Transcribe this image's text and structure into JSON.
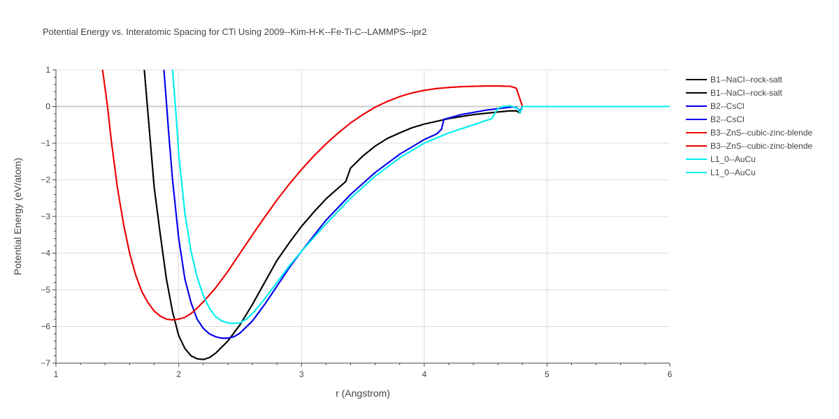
{
  "chart_data": {
    "type": "line",
    "title": "Potential Energy vs. Interatomic Spacing for CTi Using 2009--Kim-H-K--Fe-Ti-C--LAMMPS--ipr2",
    "xlabel": "r (Angstrom)",
    "ylabel": "Potential Energy (eV/atom)",
    "xlim": [
      1,
      6
    ],
    "ylim": [
      -7,
      1
    ],
    "xticks": [
      1,
      2,
      3,
      4,
      5,
      6
    ],
    "yticks": [
      1,
      0,
      -1,
      -2,
      -3,
      -4,
      -5,
      -6,
      -7
    ],
    "xtick_labels": [
      "1",
      "2",
      "3",
      "4",
      "5",
      "6"
    ],
    "ytick_labels": [
      "1",
      "0",
      "−1",
      "−2",
      "−3",
      "−4",
      "−5",
      "−6",
      "−7"
    ],
    "grid": true,
    "legend_position": "top-right",
    "series": [
      {
        "name": "B1--NaCl--rock-salt",
        "color": "#000000",
        "x": [
          1.72,
          1.75,
          1.8,
          1.85,
          1.9,
          1.95,
          2.0,
          2.05,
          2.1,
          2.15,
          2.2,
          2.25,
          2.3,
          2.4,
          2.5,
          2.6,
          2.7,
          2.8,
          2.9,
          3.0,
          3.1,
          3.2,
          3.3,
          3.36,
          3.4,
          3.5,
          3.6,
          3.7,
          3.8,
          3.9,
          4.0,
          4.2,
          4.4,
          4.6,
          4.7,
          4.75,
          4.78,
          4.8,
          5.0,
          6.0
        ],
        "y": [
          1.0,
          -0.2,
          -2.2,
          -3.5,
          -4.7,
          -5.6,
          -6.25,
          -6.6,
          -6.8,
          -6.88,
          -6.9,
          -6.85,
          -6.73,
          -6.4,
          -5.95,
          -5.4,
          -4.8,
          -4.2,
          -3.72,
          -3.27,
          -2.88,
          -2.52,
          -2.22,
          -2.05,
          -1.68,
          -1.35,
          -1.08,
          -0.87,
          -0.72,
          -0.58,
          -0.48,
          -0.33,
          -0.22,
          -0.15,
          -0.12,
          -0.12,
          -0.18,
          0.0,
          0.0,
          0.0
        ]
      },
      {
        "name": "B1--NaCl--rock-salt",
        "color": "#000000",
        "x": [
          1.72,
          1.75,
          1.8,
          1.85,
          1.9,
          1.95,
          2.0,
          2.05,
          2.1,
          2.15,
          2.2,
          2.25,
          2.3,
          2.4,
          2.5,
          2.6,
          2.7,
          2.8,
          2.9,
          3.0,
          3.1,
          3.2,
          3.3,
          3.36,
          3.4,
          3.5,
          3.6,
          3.7,
          3.8,
          3.9,
          4.0,
          4.2,
          4.4,
          4.6,
          4.7,
          4.75,
          4.78,
          4.8,
          5.0,
          6.0
        ],
        "y": [
          1.0,
          -0.2,
          -2.2,
          -3.5,
          -4.7,
          -5.6,
          -6.25,
          -6.6,
          -6.8,
          -6.88,
          -6.9,
          -6.85,
          -6.73,
          -6.4,
          -5.95,
          -5.4,
          -4.8,
          -4.2,
          -3.72,
          -3.27,
          -2.88,
          -2.52,
          -2.22,
          -2.05,
          -1.68,
          -1.35,
          -1.08,
          -0.87,
          -0.72,
          -0.58,
          -0.48,
          -0.33,
          -0.22,
          -0.15,
          -0.12,
          -0.12,
          -0.18,
          0.0,
          0.0,
          0.0
        ]
      },
      {
        "name": "B2--CsCl",
        "color": "#0000ee",
        "x": [
          1.88,
          1.92,
          1.95,
          2.0,
          2.05,
          2.1,
          2.15,
          2.2,
          2.25,
          2.3,
          2.35,
          2.4,
          2.45,
          2.5,
          2.6,
          2.7,
          2.8,
          2.9,
          3.0,
          3.2,
          3.4,
          3.6,
          3.8,
          4.0,
          4.1,
          4.14,
          4.16,
          4.3,
          4.5,
          4.7,
          4.75,
          4.78,
          4.8,
          5.0,
          6.0
        ],
        "y": [
          1.0,
          -0.8,
          -2.0,
          -3.6,
          -4.7,
          -5.35,
          -5.8,
          -6.05,
          -6.2,
          -6.28,
          -6.32,
          -6.32,
          -6.28,
          -6.18,
          -5.85,
          -5.4,
          -4.9,
          -4.4,
          -3.95,
          -3.1,
          -2.4,
          -1.8,
          -1.3,
          -0.9,
          -0.75,
          -0.62,
          -0.35,
          -0.22,
          -0.1,
          -0.02,
          -0.02,
          -0.12,
          0.0,
          0.0,
          0.0
        ]
      },
      {
        "name": "B2--CsCl",
        "color": "#0000ee",
        "x": [
          1.88,
          1.92,
          1.95,
          2.0,
          2.05,
          2.1,
          2.15,
          2.2,
          2.25,
          2.3,
          2.35,
          2.4,
          2.45,
          2.5,
          2.6,
          2.7,
          2.8,
          2.9,
          3.0,
          3.2,
          3.4,
          3.6,
          3.8,
          4.0,
          4.1,
          4.14,
          4.16,
          4.3,
          4.5,
          4.7,
          4.75,
          4.78,
          4.8,
          5.0,
          6.0
        ],
        "y": [
          1.0,
          -0.8,
          -2.0,
          -3.6,
          -4.7,
          -5.35,
          -5.8,
          -6.05,
          -6.2,
          -6.28,
          -6.32,
          -6.32,
          -6.28,
          -6.18,
          -5.85,
          -5.4,
          -4.9,
          -4.4,
          -3.95,
          -3.1,
          -2.4,
          -1.8,
          -1.3,
          -0.9,
          -0.75,
          -0.62,
          -0.35,
          -0.22,
          -0.1,
          -0.02,
          -0.02,
          -0.12,
          0.0,
          0.0,
          0.0
        ]
      },
      {
        "name": "B3--ZnS--cubic-zinc-blende",
        "color": "#ee0000",
        "x": [
          1.38,
          1.42,
          1.45,
          1.5,
          1.55,
          1.6,
          1.65,
          1.7,
          1.75,
          1.8,
          1.85,
          1.9,
          1.95,
          2.0,
          2.05,
          2.1,
          2.15,
          2.2,
          2.3,
          2.4,
          2.5,
          2.6,
          2.7,
          2.8,
          2.9,
          3.0,
          3.1,
          3.2,
          3.3,
          3.4,
          3.5,
          3.6,
          3.7,
          3.8,
          3.9,
          4.0,
          4.1,
          4.2,
          4.3,
          4.4,
          4.5,
          4.6,
          4.7,
          4.75,
          4.77,
          4.8,
          5.0,
          6.0
        ],
        "y": [
          1.0,
          0.0,
          -0.9,
          -2.2,
          -3.2,
          -4.0,
          -4.6,
          -5.05,
          -5.35,
          -5.58,
          -5.72,
          -5.8,
          -5.82,
          -5.8,
          -5.75,
          -5.65,
          -5.5,
          -5.33,
          -4.95,
          -4.5,
          -4.0,
          -3.5,
          -3.02,
          -2.55,
          -2.12,
          -1.72,
          -1.35,
          -1.02,
          -0.72,
          -0.45,
          -0.22,
          -0.02,
          0.14,
          0.27,
          0.37,
          0.44,
          0.49,
          0.52,
          0.54,
          0.55,
          0.56,
          0.56,
          0.55,
          0.5,
          0.3,
          0.0,
          0.0,
          0.0
        ]
      },
      {
        "name": "B3--ZnS--cubic-zinc-blende",
        "color": "#ee0000",
        "x": [
          1.38,
          1.42,
          1.45,
          1.5,
          1.55,
          1.6,
          1.65,
          1.7,
          1.75,
          1.8,
          1.85,
          1.9,
          1.95,
          2.0,
          2.05,
          2.1,
          2.15,
          2.2,
          2.3,
          2.4,
          2.5,
          2.6,
          2.7,
          2.8,
          2.9,
          3.0,
          3.1,
          3.2,
          3.3,
          3.4,
          3.5,
          3.6,
          3.7,
          3.8,
          3.9,
          4.0,
          4.1,
          4.2,
          4.3,
          4.4,
          4.5,
          4.6,
          4.7,
          4.75,
          4.77,
          4.8,
          5.0,
          6.0
        ],
        "y": [
          1.0,
          0.0,
          -0.9,
          -2.2,
          -3.2,
          -4.0,
          -4.6,
          -5.05,
          -5.35,
          -5.58,
          -5.72,
          -5.8,
          -5.82,
          -5.8,
          -5.75,
          -5.65,
          -5.5,
          -5.33,
          -4.95,
          -4.5,
          -4.0,
          -3.5,
          -3.02,
          -2.55,
          -2.12,
          -1.72,
          -1.35,
          -1.02,
          -0.72,
          -0.45,
          -0.22,
          -0.02,
          0.14,
          0.27,
          0.37,
          0.44,
          0.49,
          0.52,
          0.54,
          0.55,
          0.56,
          0.56,
          0.55,
          0.5,
          0.3,
          0.0,
          0.0,
          0.0
        ]
      },
      {
        "name": "L1_0--AuCu",
        "color": "#00eeee",
        "x": [
          1.95,
          1.98,
          2.0,
          2.05,
          2.1,
          2.15,
          2.2,
          2.25,
          2.3,
          2.35,
          2.4,
          2.45,
          2.5,
          2.55,
          2.6,
          2.7,
          2.8,
          2.9,
          3.0,
          3.2,
          3.4,
          3.6,
          3.8,
          4.0,
          4.2,
          4.4,
          4.55,
          4.6,
          4.65,
          4.7,
          4.73,
          4.76,
          4.78,
          4.8,
          5.0,
          6.0
        ],
        "y": [
          1.0,
          -0.3,
          -1.3,
          -2.9,
          -3.95,
          -4.65,
          -5.15,
          -5.5,
          -5.73,
          -5.85,
          -5.9,
          -5.92,
          -5.9,
          -5.8,
          -5.65,
          -5.25,
          -4.8,
          -4.35,
          -3.95,
          -3.2,
          -2.5,
          -1.9,
          -1.4,
          -1.0,
          -0.72,
          -0.5,
          -0.33,
          -0.05,
          0.0,
          0.02,
          -0.02,
          -0.05,
          -0.18,
          0.0,
          0.0,
          0.0
        ]
      },
      {
        "name": "L1_0--AuCu",
        "color": "#00eeee",
        "x": [
          1.95,
          1.98,
          2.0,
          2.05,
          2.1,
          2.15,
          2.2,
          2.25,
          2.3,
          2.35,
          2.4,
          2.45,
          2.5,
          2.55,
          2.6,
          2.7,
          2.8,
          2.9,
          3.0,
          3.2,
          3.4,
          3.6,
          3.8,
          4.0,
          4.2,
          4.4,
          4.55,
          4.6,
          4.65,
          4.7,
          4.73,
          4.76,
          4.78,
          4.8,
          5.0,
          6.0
        ],
        "y": [
          1.0,
          -0.3,
          -1.3,
          -2.9,
          -3.95,
          -4.65,
          -5.15,
          -5.5,
          -5.73,
          -5.85,
          -5.9,
          -5.92,
          -5.9,
          -5.8,
          -5.65,
          -5.25,
          -4.8,
          -4.35,
          -3.95,
          -3.2,
          -2.5,
          -1.9,
          -1.4,
          -1.0,
          -0.72,
          -0.5,
          -0.33,
          -0.05,
          0.0,
          0.02,
          -0.02,
          -0.05,
          -0.18,
          0.0,
          0.0,
          0.0
        ]
      }
    ]
  }
}
